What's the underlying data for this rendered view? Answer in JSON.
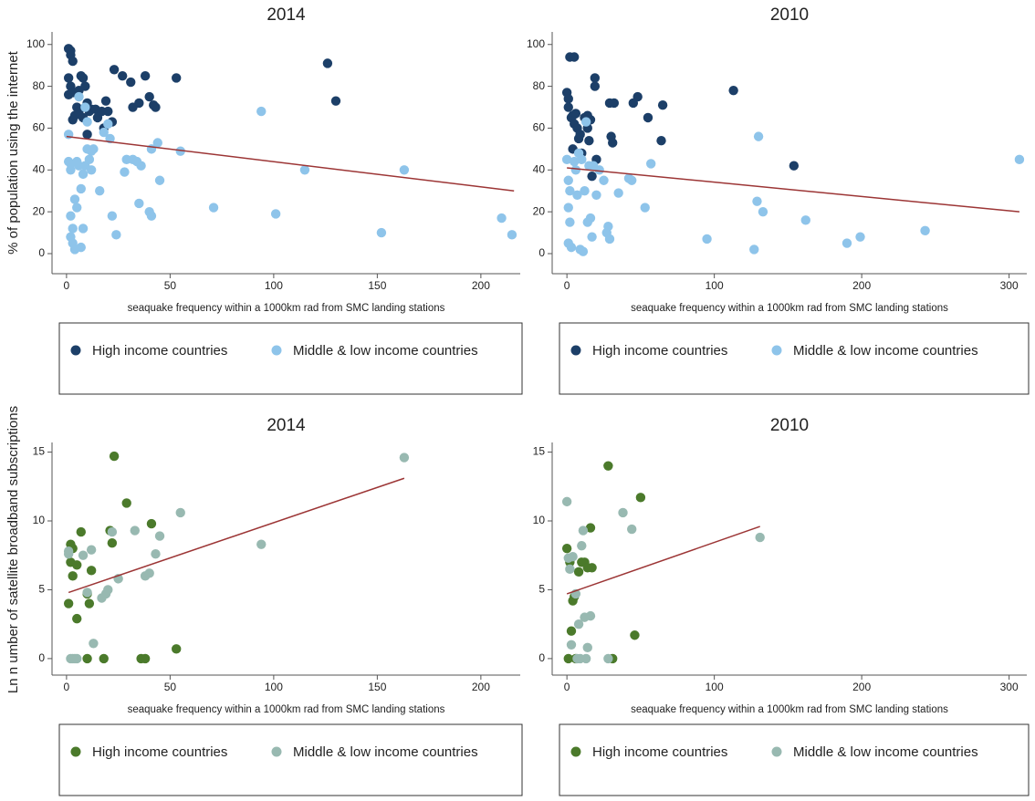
{
  "chart_data": [
    {
      "type": "scatter",
      "title": "2014",
      "xlabel": "seaquake frequency within a 1000km rad from SMC landing stations",
      "ylabel": "% of population using the internet",
      "xlim": [
        -7,
        219
      ],
      "ylim": [
        -9.6,
        106
      ],
      "xticks": [
        0,
        50,
        100,
        150,
        200
      ],
      "yticks": [
        0,
        20,
        40,
        60,
        80,
        100
      ],
      "series": [
        {
          "name": "High income countries",
          "color": "#1c3f68",
          "x": [
            1,
            2,
            2,
            3,
            1,
            2,
            1,
            3,
            3,
            4,
            5,
            6,
            7,
            8,
            6,
            9,
            10,
            11,
            12,
            10,
            14,
            15,
            17,
            19,
            20,
            22,
            23,
            27,
            31,
            32,
            35,
            38,
            40,
            42,
            43,
            53,
            126,
            130,
            18,
            8
          ],
          "values": [
            98,
            97,
            95,
            92,
            84,
            80,
            76,
            77,
            64,
            66,
            70,
            68,
            85,
            84,
            78,
            80,
            72,
            68,
            69,
            57,
            69,
            65,
            68,
            73,
            68,
            63,
            88,
            85,
            82,
            70,
            72,
            85,
            75,
            71,
            70,
            84,
            91,
            73,
            60,
            65
          ]
        },
        {
          "name": "Middle & low income countries",
          "color": "#8ec4ea",
          "x": [
            1,
            1,
            2,
            2,
            2,
            3,
            2,
            3,
            4,
            4,
            5,
            5,
            6,
            7,
            7,
            8,
            8,
            9,
            10,
            10,
            11,
            12,
            12,
            13,
            6,
            9,
            18,
            20,
            21,
            22,
            24,
            28,
            29,
            32,
            34,
            35,
            36,
            40,
            41,
            41,
            44,
            45,
            55,
            71,
            94,
            101,
            115,
            152,
            163,
            210,
            215,
            16
          ],
          "values": [
            57,
            44,
            43,
            40,
            18,
            12,
            8,
            5,
            2,
            26,
            44,
            22,
            42,
            3,
            31,
            12,
            38,
            42,
            50,
            63,
            45,
            40,
            49,
            50,
            75,
            70,
            58,
            62,
            55,
            18,
            9,
            39,
            45,
            45,
            44,
            24,
            42,
            20,
            18,
            50,
            53,
            35,
            49,
            22,
            68,
            19,
            40,
            10,
            40,
            17,
            9,
            30
          ]
        }
      ],
      "fit": {
        "color": "#9c3535",
        "x": [
          0,
          216
        ],
        "values": [
          56,
          30
        ]
      }
    },
    {
      "type": "scatter",
      "title": "2010",
      "xlabel": "seaquake frequency within a 1000km rad from SMC landing stations",
      "xlim": [
        -10,
        312
      ],
      "ylim": [
        -9.6,
        106
      ],
      "xticks": [
        0,
        100,
        200,
        300
      ],
      "yticks": [
        0,
        20,
        40,
        60,
        80,
        100
      ],
      "series": [
        {
          "name": "High income countries",
          "color": "#1c3f68",
          "x": [
            0,
            1,
            1,
            2,
            5,
            3,
            4,
            5,
            6,
            7,
            8,
            9,
            10,
            12,
            14,
            14,
            15,
            16,
            17,
            19,
            19,
            20,
            29,
            30,
            31,
            32,
            45,
            48,
            55,
            64,
            65,
            113,
            154,
            4
          ],
          "values": [
            77,
            74,
            70,
            94,
            94,
            65,
            66,
            62,
            67,
            60,
            55,
            57,
            48,
            65,
            66,
            60,
            54,
            64,
            37,
            84,
            80,
            45,
            72,
            56,
            53,
            72,
            72,
            75,
            65,
            54,
            71,
            78,
            42,
            50
          ]
        },
        {
          "name": "Middle & low income countries",
          "color": "#8ec4ea",
          "x": [
            0,
            1,
            2,
            1,
            2,
            1,
            3,
            5,
            6,
            7,
            8,
            9,
            10,
            11,
            12,
            13,
            14,
            15,
            16,
            17,
            18,
            20,
            22,
            25,
            27,
            28,
            29,
            35,
            42,
            44,
            53,
            57,
            95,
            127,
            129,
            130,
            133,
            162,
            190,
            199,
            243,
            307
          ],
          "values": [
            45,
            35,
            30,
            22,
            15,
            5,
            3,
            44,
            40,
            28,
            48,
            2,
            45,
            1,
            30,
            63,
            15,
            42,
            17,
            8,
            42,
            28,
            40,
            35,
            10,
            13,
            7,
            29,
            36,
            35,
            22,
            43,
            7,
            2,
            25,
            56,
            20,
            16,
            5,
            8,
            11,
            45
          ]
        }
      ],
      "fit": {
        "color": "#9c3535",
        "x": [
          0,
          307
        ],
        "values": [
          41,
          20
        ]
      }
    },
    {
      "type": "scatter",
      "title": "2014",
      "xlabel": "seaquake frequency within a 1000km rad from SMC landing stations",
      "ylabel": "Ln n umber of satellite broadband subscriptions",
      "xlim": [
        -7,
        219
      ],
      "ylim": [
        -1.2,
        15.7
      ],
      "xticks": [
        0,
        50,
        100,
        150,
        200
      ],
      "yticks": [
        0,
        5,
        10,
        15
      ],
      "series": [
        {
          "name": "High income countries",
          "color": "#4b7a2b",
          "x": [
            1,
            2,
            2,
            3,
            3,
            5,
            5,
            7,
            10,
            10,
            11,
            12,
            18,
            21,
            22,
            23,
            29,
            36,
            38,
            41,
            53
          ],
          "values": [
            4,
            8.3,
            7,
            6,
            8,
            2.9,
            6.8,
            9.2,
            0,
            4.7,
            4,
            6.4,
            0,
            9.3,
            8.4,
            14.7,
            11.3,
            0,
            0,
            9.8,
            0.7
          ]
        },
        {
          "name": "Middle & low income countries",
          "color": "#98b9b1",
          "x": [
            1,
            1,
            2,
            3,
            4,
            5,
            8,
            10,
            12,
            13,
            17,
            19,
            20,
            22,
            25,
            33,
            38,
            40,
            43,
            45,
            55,
            94,
            163
          ],
          "values": [
            7.8,
            7.6,
            0,
            0,
            0,
            0,
            7.5,
            4.8,
            7.9,
            1.1,
            4.4,
            4.7,
            5,
            9.2,
            5.8,
            9.3,
            6,
            6.2,
            7.6,
            8.9,
            10.6,
            8.3,
            14.6
          ]
        }
      ],
      "fit": {
        "color": "#9c3535",
        "x": [
          1,
          163
        ],
        "values": [
          4.8,
          13.1
        ]
      }
    },
    {
      "type": "scatter",
      "title": "2010",
      "xlabel": "seaquake frequency within a 1000km rad from SMC landing stations",
      "xlim": [
        -10,
        312
      ],
      "ylim": [
        -1.2,
        15.7
      ],
      "xticks": [
        0,
        100,
        200,
        300
      ],
      "yticks": [
        0,
        5,
        10,
        15
      ],
      "series": [
        {
          "name": "High income countries",
          "color": "#4b7a2b",
          "x": [
            0,
            1,
            2,
            3,
            4,
            5,
            6,
            8,
            10,
            12,
            14,
            16,
            17,
            28,
            31,
            46,
            50
          ],
          "values": [
            8,
            0,
            7,
            2,
            4.2,
            4.5,
            0,
            6.3,
            7,
            7,
            6.6,
            9.5,
            6.6,
            14,
            0,
            1.7,
            11.7
          ]
        },
        {
          "name": "Middle & low income countries",
          "color": "#98b9b1",
          "x": [
            0,
            1,
            2,
            3,
            4,
            6,
            7,
            8,
            9,
            10,
            11,
            12,
            13,
            14,
            16,
            28,
            38,
            44,
            131
          ],
          "values": [
            11.4,
            7.3,
            6.5,
            1,
            7.4,
            4.7,
            0,
            2.5,
            0,
            8.2,
            9.3,
            3,
            0,
            0.8,
            3.1,
            0,
            10.6,
            9.4,
            8.8
          ]
        }
      ],
      "fit": {
        "color": "#9c3535",
        "x": [
          0,
          131
        ],
        "values": [
          4.7,
          9.6
        ]
      }
    }
  ]
}
